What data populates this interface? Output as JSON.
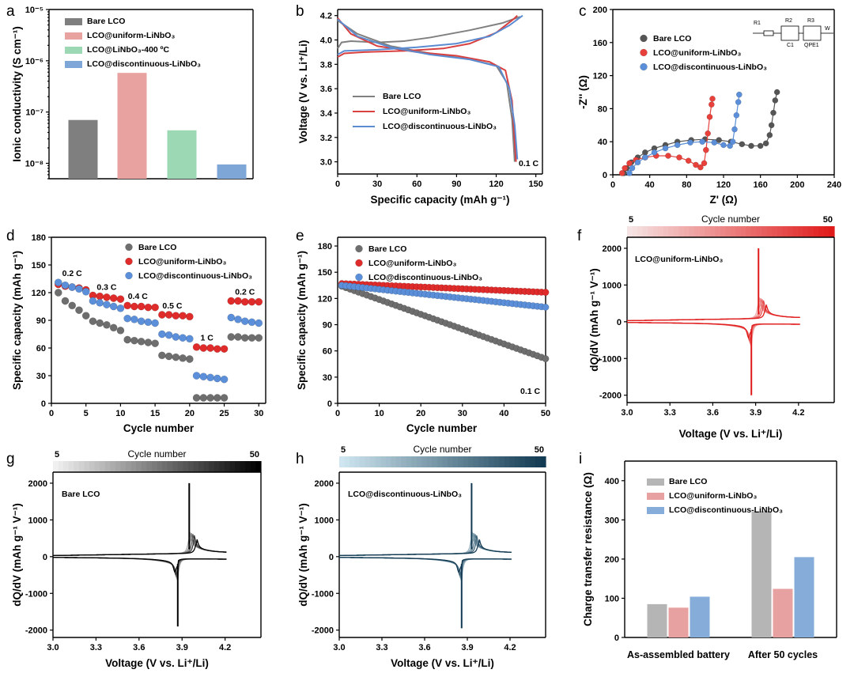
{
  "chart_data": [
    {
      "panel": "a",
      "type": "bar",
      "ylabel": "Ionic conductivity (S cm⁻¹)",
      "yscale": "log",
      "ylim": [
        5e-09,
        1e-05
      ],
      "ytick_labels": [
        "10⁻⁸",
        "10⁻⁷",
        "10⁻⁶",
        "10⁻⁵"
      ],
      "categories": [
        "Bare LCO",
        "LCO@uniform-LiNbO₃",
        "LCO@LiNbO₃-400 ºC",
        "LCO@discontinuous-LiNbO₃"
      ],
      "values": [
        7e-08,
        5.8e-07,
        4.4e-08,
        9.5e-09
      ],
      "colors": [
        "#7f7f7f",
        "#e8a3a1",
        "#9dd8b5",
        "#7ea6d6"
      ]
    },
    {
      "panel": "b",
      "type": "line",
      "xlabel": "Specific capacity (mAh g⁻¹)",
      "ylabel": "Voltage (V vs. Li⁺/Li)",
      "xlim": [
        0,
        155
      ],
      "ylim": [
        2.9,
        4.25
      ],
      "xticks": [
        0,
        30,
        60,
        90,
        120,
        150
      ],
      "yticks": [
        3.0,
        3.2,
        3.4,
        3.6,
        3.8,
        4.0,
        4.2
      ],
      "annotation": "0.1 C",
      "series": [
        {
          "name": "Bare LCO",
          "color": "#808080",
          "charge": [
            [
              0,
              3.93
            ],
            [
              3,
              3.98
            ],
            [
              10,
              3.99
            ],
            [
              30,
              3.98
            ],
            [
              50,
              3.99
            ],
            [
              70,
              4.02
            ],
            [
              100,
              4.08
            ],
            [
              125,
              4.14
            ],
            [
              138,
              4.19
            ]
          ],
          "discharge": [
            [
              0,
              4.16
            ],
            [
              15,
              4.05
            ],
            [
              40,
              3.95
            ],
            [
              70,
              3.89
            ],
            [
              100,
              3.84
            ],
            [
              120,
              3.79
            ],
            [
              128,
              3.65
            ],
            [
              132,
              3.35
            ],
            [
              134,
              3.0
            ]
          ]
        },
        {
          "name": "LCO@uniform-LiNbO₃",
          "color": "#d94040",
          "charge": [
            [
              0,
              3.86
            ],
            [
              5,
              3.89
            ],
            [
              20,
              3.9
            ],
            [
              50,
              3.91
            ],
            [
              80,
              3.93
            ],
            [
              100,
              3.97
            ],
            [
              120,
              4.06
            ],
            [
              133,
              4.17
            ],
            [
              136,
              4.2
            ]
          ],
          "discharge": [
            [
              0,
              4.18
            ],
            [
              10,
              4.05
            ],
            [
              30,
              3.95
            ],
            [
              60,
              3.9
            ],
            [
              90,
              3.87
            ],
            [
              115,
              3.82
            ],
            [
              127,
              3.75
            ],
            [
              132,
              3.5
            ],
            [
              135,
              3.0
            ]
          ]
        },
        {
          "name": "LCO@discontinuous-LiNbO₃",
          "color": "#5b8bd0",
          "charge": [
            [
              0,
              3.88
            ],
            [
              5,
              3.91
            ],
            [
              30,
              3.92
            ],
            [
              60,
              3.94
            ],
            [
              90,
              3.97
            ],
            [
              115,
              4.03
            ],
            [
              130,
              4.12
            ],
            [
              140,
              4.2
            ]
          ],
          "discharge": [
            [
              0,
              4.17
            ],
            [
              15,
              4.03
            ],
            [
              40,
              3.94
            ],
            [
              70,
              3.88
            ],
            [
              100,
              3.84
            ],
            [
              122,
              3.78
            ],
            [
              130,
              3.6
            ],
            [
              134,
              3.3
            ],
            [
              136,
              3.02
            ]
          ]
        }
      ]
    },
    {
      "panel": "c",
      "type": "scatter",
      "xlabel": "Z' (Ω)",
      "ylabel": "-Z'' (Ω)",
      "xlim": [
        0,
        240
      ],
      "ylim": [
        0,
        200
      ],
      "xticks": [
        0,
        40,
        80,
        120,
        160,
        200,
        240
      ],
      "yticks": [
        0,
        40,
        80,
        120,
        160,
        200
      ],
      "circuit_labels": [
        "R1",
        "R2",
        "R3",
        "W",
        "C1",
        "QPE1"
      ],
      "series": [
        {
          "name": "Bare LCO",
          "color": "#555555",
          "points": [
            [
              12,
              2
            ],
            [
              15,
              8
            ],
            [
              20,
              15
            ],
            [
              27,
              21
            ],
            [
              35,
              27
            ],
            [
              45,
              32
            ],
            [
              57,
              36
            ],
            [
              70,
              40
            ],
            [
              85,
              42
            ],
            [
              100,
              43
            ],
            [
              115,
              42
            ],
            [
              128,
              40
            ],
            [
              140,
              37
            ],
            [
              150,
              35
            ],
            [
              160,
              35
            ],
            [
              166,
              38
            ],
            [
              170,
              48
            ],
            [
              172,
              60
            ],
            [
              174,
              75
            ],
            [
              176,
              90
            ],
            [
              178,
              100
            ]
          ]
        },
        {
          "name": "LCO@uniform-LiNbO₃",
          "color": "#e8413c",
          "points": [
            [
              10,
              2
            ],
            [
              13,
              8
            ],
            [
              18,
              14
            ],
            [
              25,
              18
            ],
            [
              35,
              21
            ],
            [
              47,
              23
            ],
            [
              60,
              23
            ],
            [
              72,
              21
            ],
            [
              82,
              17
            ],
            [
              90,
              12
            ],
            [
              95,
              9
            ],
            [
              99,
              14
            ],
            [
              101,
              30
            ],
            [
              103,
              50
            ],
            [
              105,
              70
            ],
            [
              107,
              85
            ],
            [
              108,
              92
            ]
          ]
        },
        {
          "name": "LCO@discontinuous-LiNbO₃",
          "color": "#5b8fd9",
          "points": [
            [
              18,
              2
            ],
            [
              21,
              8
            ],
            [
              27,
              15
            ],
            [
              35,
              21
            ],
            [
              45,
              27
            ],
            [
              57,
              32
            ],
            [
              70,
              36
            ],
            [
              84,
              39
            ],
            [
              97,
              40
            ],
            [
              110,
              39
            ],
            [
              120,
              36
            ],
            [
              127,
              35
            ],
            [
              130,
              40
            ],
            [
              132,
              55
            ],
            [
              134,
              72
            ],
            [
              136,
              88
            ],
            [
              137,
              97
            ]
          ]
        }
      ]
    },
    {
      "panel": "d",
      "type": "scatter",
      "xlabel": "Cycle number",
      "ylabel": "Specific capacity (mAh g⁻¹)",
      "xlim": [
        0,
        31
      ],
      "ylim": [
        0,
        180
      ],
      "xticks": [
        0,
        5,
        10,
        15,
        20,
        25,
        30
      ],
      "yticks": [
        0,
        30,
        60,
        90,
        120,
        150,
        180
      ],
      "rate_labels": [
        {
          "text": "0.2 C",
          "x": 3,
          "y": 138
        },
        {
          "text": "0.3 C",
          "x": 8,
          "y": 123
        },
        {
          "text": "0.4 C",
          "x": 12.5,
          "y": 113
        },
        {
          "text": "0.5 C",
          "x": 17.5,
          "y": 103
        },
        {
          "text": "1 C",
          "x": 22.5,
          "y": 68
        },
        {
          "text": "0.2 C",
          "x": 28,
          "y": 118
        }
      ],
      "series": [
        {
          "name": "Bare LCO",
          "color": "#6e6e6e",
          "values": [
            120,
            111,
            106,
            101,
            95,
            89,
            87,
            85,
            82,
            79,
            69,
            68,
            67,
            66,
            65,
            52,
            51,
            50,
            49,
            48,
            6,
            6,
            6,
            6,
            6,
            72,
            72,
            71,
            71,
            71
          ]
        },
        {
          "name": "LCO@uniform-LiNbO₃",
          "color": "#e02b2b",
          "values": [
            129,
            127,
            126,
            125,
            123,
            117,
            116,
            115,
            114,
            113,
            106,
            105,
            105,
            104,
            104,
            96,
            96,
            95,
            95,
            94,
            61,
            60,
            60,
            59,
            59,
            111,
            111,
            110,
            110,
            110
          ]
        },
        {
          "name": "LCO@discontinuous-LiNbO₃",
          "color": "#5b8fd9",
          "values": [
            131,
            128,
            126,
            124,
            121,
            111,
            109,
            107,
            105,
            103,
            92,
            91,
            89,
            88,
            87,
            75,
            74,
            72,
            71,
            70,
            30,
            29,
            28,
            27,
            26,
            93,
            91,
            89,
            88,
            87
          ]
        }
      ]
    },
    {
      "panel": "e",
      "type": "scatter",
      "xlabel": "Cycle number",
      "ylabel": "Specific capacity (mAh g⁻¹)",
      "xlim": [
        0,
        50
      ],
      "ylim": [
        0,
        190
      ],
      "xticks": [
        0,
        10,
        20,
        30,
        40,
        50
      ],
      "yticks": [
        0,
        30,
        60,
        90,
        120,
        150,
        180
      ],
      "annotation": "0.1 C",
      "series": [
        {
          "name": "Bare LCO",
          "color": "#6e6e6e",
          "start": 134,
          "end": 51,
          "curve": "linear"
        },
        {
          "name": "LCO@uniform-LiNbO₃",
          "color": "#e02b2b",
          "start": 137,
          "end": 127,
          "curve": "linear"
        },
        {
          "name": "LCO@discontinuous-LiNbO₃",
          "color": "#5b8fd9",
          "start": 135,
          "end": 110,
          "curve": "linear"
        }
      ]
    },
    {
      "panel": "f",
      "type": "line",
      "title": "LCO@uniform-LiNbO₃",
      "xlabel": "Voltage (V vs. Li⁺/Li)",
      "ylabel": "dQ/dV (mAh g⁻¹ V⁻¹)",
      "xlim": [
        3.0,
        4.45
      ],
      "ylim": [
        -2200,
        2300
      ],
      "xticks": [
        3.0,
        3.3,
        3.6,
        3.9,
        4.2
      ],
      "yticks": [
        -2000,
        -1000,
        0,
        1000,
        2000
      ],
      "colorbar": {
        "label": "Cycle number",
        "min": 5,
        "max": 50,
        "from": "#f6e4e4",
        "to": "#e01b1b"
      },
      "charge_peak": {
        "v": 3.92,
        "value": 2000
      },
      "discharge_peak": {
        "v": 3.87,
        "value": -2000
      }
    },
    {
      "panel": "g",
      "type": "line",
      "title": "Bare LCO",
      "xlabel": "Voltage (V vs. Li⁺/Li)",
      "ylabel": "dQ/dV (mAh g⁻¹ V⁻¹)",
      "xlim": [
        3.0,
        4.45
      ],
      "ylim": [
        -2200,
        2300
      ],
      "xticks": [
        3.0,
        3.3,
        3.6,
        3.9,
        4.2
      ],
      "yticks": [
        -2000,
        -1000,
        0,
        1000,
        2000
      ],
      "colorbar": {
        "label": "Cycle number",
        "min": 5,
        "max": 50,
        "from": "#f0f0f0",
        "to": "#000000"
      },
      "charge_peak": {
        "v": 3.95,
        "value": 2000
      },
      "discharge_peak": {
        "v": 3.87,
        "value": -1900
      }
    },
    {
      "panel": "h",
      "type": "line",
      "title": "LCO@discontinuous-LiNbO₃",
      "xlabel": "Voltage (V vs. Li⁺/Li)",
      "ylabel": "dQ/dV (mAh g⁻¹ V⁻¹)",
      "xlim": [
        3.0,
        4.45
      ],
      "ylim": [
        -2200,
        2300
      ],
      "xticks": [
        3.0,
        3.3,
        3.6,
        3.9,
        4.2
      ],
      "yticks": [
        -2000,
        -1000,
        0,
        1000,
        2000
      ],
      "colorbar": {
        "label": "Cycle number",
        "min": 5,
        "max": 50,
        "from": "#cfe6f0",
        "to": "#123a52"
      },
      "charge_peak": {
        "v": 3.93,
        "value": 2000
      },
      "discharge_peak": {
        "v": 3.86,
        "value": -1950
      }
    },
    {
      "panel": "i",
      "type": "bar",
      "ylabel": "Charge transfer resistance (Ω)",
      "ylim": [
        0,
        450
      ],
      "yticks": [
        0,
        100,
        200,
        300,
        400
      ],
      "categories": [
        "As-assembled battery",
        "After 50 cycles"
      ],
      "series": [
        {
          "name": "Bare LCO",
          "color": "#b5b5b5",
          "values": [
            85,
            322
          ]
        },
        {
          "name": "LCO@uniform-LiNbO₃",
          "color": "#e8a1a1",
          "values": [
            76,
            124
          ]
        },
        {
          "name": "LCO@discontinuous-LiNbO₃",
          "color": "#86acd9",
          "values": [
            104,
            205
          ]
        }
      ]
    }
  ]
}
